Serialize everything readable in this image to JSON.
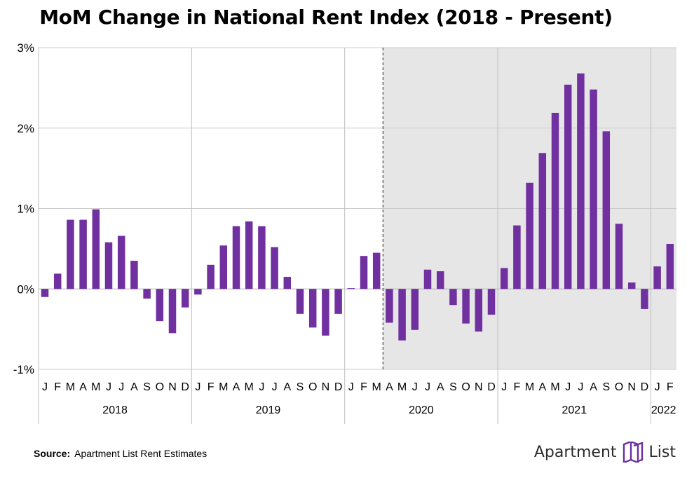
{
  "title": "MoM Change in National Rent Index (2018 - Present)",
  "footer": {
    "source_label": "Source:",
    "source_text": "Apartment List Rent Estimates",
    "brand_left": "Apartment",
    "brand_right": "List",
    "brand_icon": "apartment-list-logo-icon"
  },
  "colors": {
    "bar": "#7030a0",
    "shade": "#e6e6e6",
    "grid": "#cccccc",
    "logo": "#6b2fa0"
  },
  "chart_data": {
    "type": "bar",
    "ylim": [
      -1,
      3
    ],
    "yticks": [
      -1,
      0,
      1,
      2,
      3
    ],
    "ytick_labels": [
      "-1%",
      "0%",
      "1%",
      "2%",
      "3%"
    ],
    "grid": true,
    "shaded_from": "2020-04",
    "shaded_note": "gray shaded region with dashed line starting April 2020",
    "years": [
      {
        "label": "2018",
        "months": [
          "J",
          "F",
          "M",
          "A",
          "M",
          "J",
          "J",
          "A",
          "S",
          "O",
          "N",
          "D"
        ],
        "values": [
          -0.1,
          0.19,
          0.86,
          0.86,
          0.99,
          0.58,
          0.66,
          0.35,
          -0.12,
          -0.4,
          -0.55,
          -0.23
        ]
      },
      {
        "label": "2019",
        "months": [
          "J",
          "F",
          "M",
          "A",
          "M",
          "J",
          "J",
          "A",
          "S",
          "O",
          "N",
          "D"
        ],
        "values": [
          -0.07,
          0.3,
          0.54,
          0.78,
          0.84,
          0.78,
          0.52,
          0.15,
          -0.31,
          -0.48,
          -0.58,
          -0.31
        ]
      },
      {
        "label": "2020",
        "months": [
          "J",
          "F",
          "M",
          "A",
          "M",
          "J",
          "J",
          "A",
          "S",
          "O",
          "N",
          "D"
        ],
        "values": [
          0.01,
          0.41,
          0.45,
          -0.42,
          -0.64,
          -0.51,
          0.24,
          0.22,
          -0.2,
          -0.43,
          -0.53,
          -0.32
        ]
      },
      {
        "label": "2021",
        "months": [
          "J",
          "F",
          "M",
          "A",
          "M",
          "J",
          "J",
          "A",
          "S",
          "O",
          "N",
          "D"
        ],
        "values": [
          0.26,
          0.79,
          1.32,
          1.69,
          2.19,
          2.54,
          2.68,
          2.48,
          1.96,
          0.81,
          0.08,
          -0.25
        ]
      },
      {
        "label": "2022",
        "months": [
          "J",
          "F"
        ],
        "values": [
          0.28,
          0.56
        ]
      }
    ]
  }
}
